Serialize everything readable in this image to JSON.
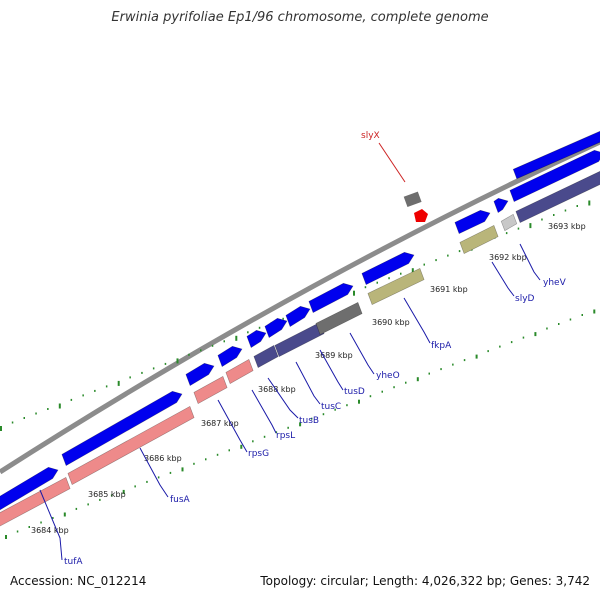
{
  "title": "Erwinia pyrifoliae Ep1/96 chromosome, complete genome",
  "footer": {
    "accession": "Accession: NC_012214",
    "summary": "Topology: circular; Length: 4,026,322 bp; Genes: 3,742"
  },
  "colors": {
    "backbone": "#8c8c8c",
    "cds": "#0000ee",
    "cds_stroke": "#00008a",
    "rrna_pink": "#ee8a8a",
    "dark_purple": "#4a4a8c",
    "gray": "#6e6e6e",
    "olive": "#b9b57a",
    "light_gray": "#c8c8c8",
    "trna_red": "#ee0000",
    "ticks": "#2a8a2a",
    "label_blue": "#1a1aa8",
    "label_red": "#cc2222"
  },
  "scale": {
    "tick_labels": [
      "3684 kbp",
      "3685 kbp",
      "3686 kbp",
      "3687 kbp",
      "3688 kbp",
      "3689 kbp",
      "3690 kbp",
      "3691 kbp",
      "3692 kbp",
      "3693 kbp"
    ]
  },
  "genes": [
    {
      "name": "tufA",
      "color": "label_blue"
    },
    {
      "name": "fusA",
      "color": "label_blue"
    },
    {
      "name": "rpsG",
      "color": "label_blue"
    },
    {
      "name": "rpsL",
      "color": "label_blue"
    },
    {
      "name": "tusB",
      "color": "label_blue"
    },
    {
      "name": "tusC",
      "color": "label_blue"
    },
    {
      "name": "tusD",
      "color": "label_blue"
    },
    {
      "name": "yheO",
      "color": "label_blue"
    },
    {
      "name": "fkpA",
      "color": "label_blue"
    },
    {
      "name": "slyD",
      "color": "label_blue"
    },
    {
      "name": "yheV",
      "color": "label_blue"
    },
    {
      "name": "slyX",
      "color": "label_red"
    }
  ]
}
